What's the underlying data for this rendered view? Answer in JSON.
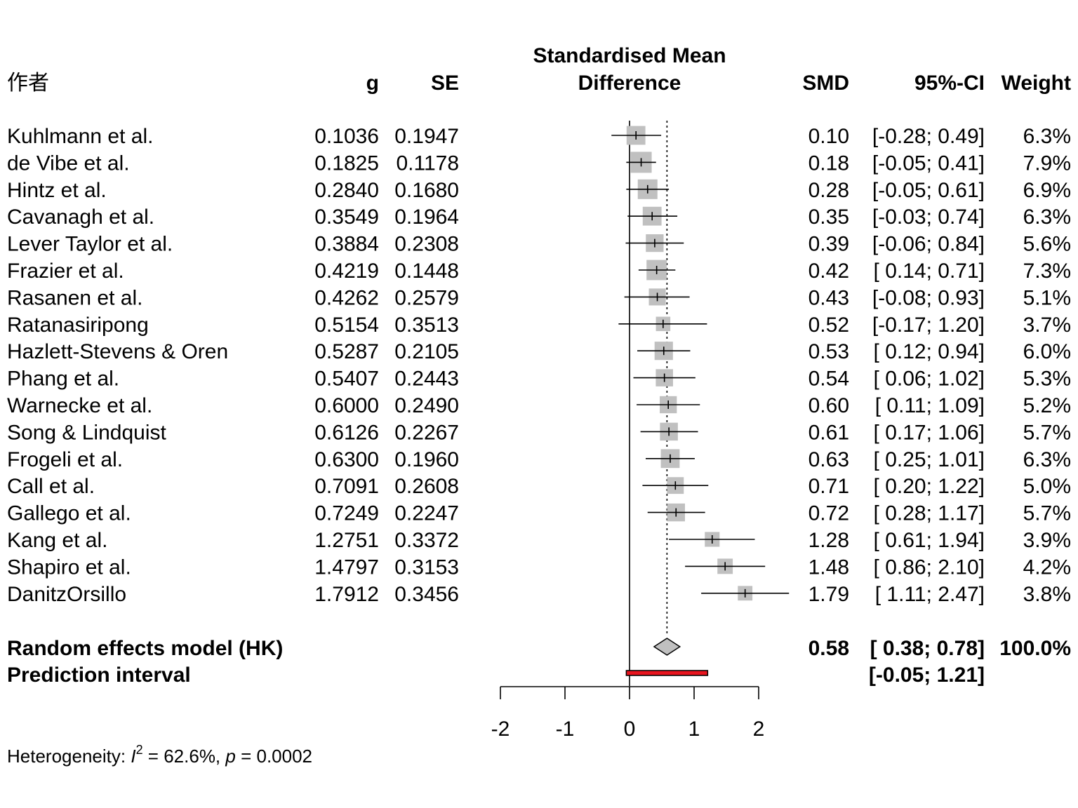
{
  "chart_data": {
    "type": "forest",
    "headers": {
      "author": "作者",
      "g": "g",
      "se": "SE",
      "effect_line1": "Standardised Mean",
      "effect_line2": "Difference",
      "smd": "SMD",
      "ci": "95%-CI",
      "weight": "Weight"
    },
    "studies": [
      {
        "author": "Kuhlmann et al.",
        "g": "0.1036",
        "se": "0.1947",
        "smd": 0.1,
        "lower": -0.28,
        "upper": 0.49,
        "smd_label": "0.10",
        "ci_label": "[-0.28; 0.49]",
        "weight": "6.3%"
      },
      {
        "author": "de Vibe et al.",
        "g": "0.1825",
        "se": "0.1178",
        "smd": 0.18,
        "lower": -0.05,
        "upper": 0.41,
        "smd_label": "0.18",
        "ci_label": "[-0.05; 0.41]",
        "weight": "7.9%"
      },
      {
        "author": "Hintz et al.",
        "g": "0.2840",
        "se": "0.1680",
        "smd": 0.28,
        "lower": -0.05,
        "upper": 0.61,
        "smd_label": "0.28",
        "ci_label": "[-0.05; 0.61]",
        "weight": "6.9%"
      },
      {
        "author": "Cavanagh et al.",
        "g": "0.3549",
        "se": "0.1964",
        "smd": 0.35,
        "lower": -0.03,
        "upper": 0.74,
        "smd_label": "0.35",
        "ci_label": "[-0.03; 0.74]",
        "weight": "6.3%"
      },
      {
        "author": "Lever Taylor et al.",
        "g": "0.3884",
        "se": "0.2308",
        "smd": 0.39,
        "lower": -0.06,
        "upper": 0.84,
        "smd_label": "0.39",
        "ci_label": "[-0.06; 0.84]",
        "weight": "5.6%"
      },
      {
        "author": "Frazier et al.",
        "g": "0.4219",
        "se": "0.1448",
        "smd": 0.42,
        "lower": 0.14,
        "upper": 0.71,
        "smd_label": "0.42",
        "ci_label": "[ 0.14; 0.71]",
        "weight": "7.3%"
      },
      {
        "author": "Rasanen et al.",
        "g": "0.4262",
        "se": "0.2579",
        "smd": 0.43,
        "lower": -0.08,
        "upper": 0.93,
        "smd_label": "0.43",
        "ci_label": "[-0.08; 0.93]",
        "weight": "5.1%"
      },
      {
        "author": "Ratanasiripong",
        "g": "0.5154",
        "se": "0.3513",
        "smd": 0.52,
        "lower": -0.17,
        "upper": 1.2,
        "smd_label": "0.52",
        "ci_label": "[-0.17; 1.20]",
        "weight": "3.7%"
      },
      {
        "author": "Hazlett-Stevens & Oren",
        "g": "0.5287",
        "se": "0.2105",
        "smd": 0.53,
        "lower": 0.12,
        "upper": 0.94,
        "smd_label": "0.53",
        "ci_label": "[ 0.12; 0.94]",
        "weight": "6.0%"
      },
      {
        "author": "Phang et al.",
        "g": "0.5407",
        "se": "0.2443",
        "smd": 0.54,
        "lower": 0.06,
        "upper": 1.02,
        "smd_label": "0.54",
        "ci_label": "[ 0.06; 1.02]",
        "weight": "5.3%"
      },
      {
        "author": "Warnecke et al.",
        "g": "0.6000",
        "se": "0.2490",
        "smd": 0.6,
        "lower": 0.11,
        "upper": 1.09,
        "smd_label": "0.60",
        "ci_label": "[ 0.11; 1.09]",
        "weight": "5.2%"
      },
      {
        "author": "Song & Lindquist",
        "g": "0.6126",
        "se": "0.2267",
        "smd": 0.61,
        "lower": 0.17,
        "upper": 1.06,
        "smd_label": "0.61",
        "ci_label": "[ 0.17; 1.06]",
        "weight": "5.7%"
      },
      {
        "author": "Frogeli et al.",
        "g": "0.6300",
        "se": "0.1960",
        "smd": 0.63,
        "lower": 0.25,
        "upper": 1.01,
        "smd_label": "0.63",
        "ci_label": "[ 0.25; 1.01]",
        "weight": "6.3%"
      },
      {
        "author": "Call et al.",
        "g": "0.7091",
        "se": "0.2608",
        "smd": 0.71,
        "lower": 0.2,
        "upper": 1.22,
        "smd_label": "0.71",
        "ci_label": "[ 0.20; 1.22]",
        "weight": "5.0%"
      },
      {
        "author": "Gallego et al.",
        "g": "0.7249",
        "se": "0.2247",
        "smd": 0.72,
        "lower": 0.28,
        "upper": 1.17,
        "smd_label": "0.72",
        "ci_label": "[ 0.28; 1.17]",
        "weight": "5.7%"
      },
      {
        "author": "Kang et al.",
        "g": "1.2751",
        "se": "0.3372",
        "smd": 1.28,
        "lower": 0.61,
        "upper": 1.94,
        "smd_label": "1.28",
        "ci_label": "[ 0.61; 1.94]",
        "weight": "3.9%"
      },
      {
        "author": "Shapiro et al.",
        "g": "1.4797",
        "se": "0.3153",
        "smd": 1.48,
        "lower": 0.86,
        "upper": 2.1,
        "smd_label": "1.48",
        "ci_label": "[ 0.86; 2.10]",
        "weight": "4.2%"
      },
      {
        "author": "DanitzOrsillo",
        "g": "1.7912",
        "se": "0.3456",
        "smd": 1.79,
        "lower": 1.11,
        "upper": 2.47,
        "smd_label": "1.79",
        "ci_label": "[ 1.11; 2.47]",
        "weight": "3.8%"
      }
    ],
    "summary": {
      "label": "Random effects model (HK)",
      "smd": 0.58,
      "lower": 0.38,
      "upper": 0.78,
      "smd_label": "0.58",
      "ci_label": "[ 0.38; 0.78]",
      "weight": "100.0%"
    },
    "prediction": {
      "label": "Prediction interval",
      "lower": -0.05,
      "upper": 1.21,
      "ci_label": "[-0.05; 1.21]"
    },
    "xlim": [
      -2,
      2
    ],
    "xticks": [
      -2,
      -1,
      0,
      1,
      2
    ],
    "null_line": 0,
    "heterogeneity": {
      "prefix": "Heterogeneity: ",
      "i2_symbol": "I",
      "i2_sup": "2",
      "i2_value": " = 62.6%, ",
      "p_symbol": "p",
      "p_value": " = 0.0002"
    },
    "colors": {
      "box": "#c0c0c0",
      "diamond": "#c0c0c0",
      "prediction_bar": "#e8141e",
      "line": "#000000"
    }
  }
}
